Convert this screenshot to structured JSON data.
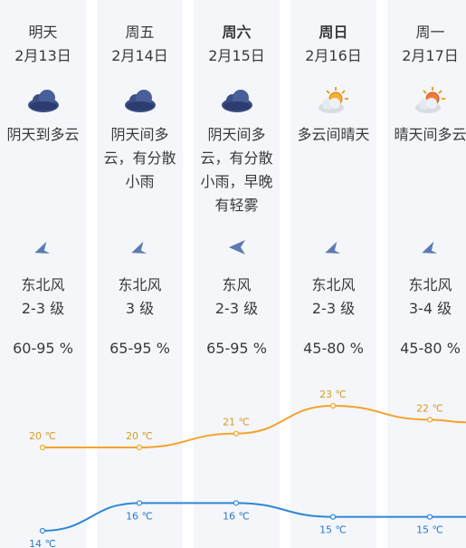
{
  "days": [
    {
      "day": "明天",
      "date": "2月13日",
      "bold": false,
      "icon": "overcast-cloud-icon",
      "desc": "阴天到多云",
      "wind_dir": "东北风",
      "wind_level": "2-3 级",
      "humidity": "60-95 %",
      "high": "20 ℃",
      "low": "14 ℃"
    },
    {
      "day": "周五",
      "date": "2月14日",
      "bold": false,
      "icon": "overcast-cloud-icon",
      "desc": "阴天间多云，有分散小雨",
      "wind_dir": "东北风",
      "wind_level": "3 级",
      "humidity": "65-95 %",
      "high": "20 ℃",
      "low": "16 ℃"
    },
    {
      "day": "周六",
      "date": "2月15日",
      "bold": true,
      "icon": "overcast-cloud-icon",
      "desc": "阴天间多云，有分散小雨，早晚有轻雾",
      "wind_dir": "东风",
      "wind_level": "2-3 级",
      "humidity": "65-95 %",
      "high": "21 ℃",
      "low": "16 ℃"
    },
    {
      "day": "周日",
      "date": "2月16日",
      "bold": true,
      "icon": "partly-cloudy-icon",
      "desc": "多云间晴天",
      "wind_dir": "东北风",
      "wind_level": "2-3 级",
      "humidity": "45-80 %",
      "high": "23 ℃",
      "low": "15 ℃"
    },
    {
      "day": "周一",
      "date": "2月17日",
      "bold": false,
      "icon": "partly-cloudy-icon",
      "desc": "晴天间多云",
      "wind_dir": "东北风",
      "wind_level": "3-4 级",
      "humidity": "45-80 %",
      "high": "22 ℃",
      "low": "15 ℃"
    }
  ],
  "chart_data": {
    "type": "line",
    "categories": [
      "2月13日",
      "2月14日",
      "2月15日",
      "2月16日",
      "2月17日"
    ],
    "series": [
      {
        "values": [
          20,
          20,
          21,
          23,
          22
        ],
        "color": "#f3a32b"
      },
      {
        "values": [
          14,
          16,
          16,
          15,
          15
        ],
        "color": "#2f86d6"
      }
    ]
  }
}
